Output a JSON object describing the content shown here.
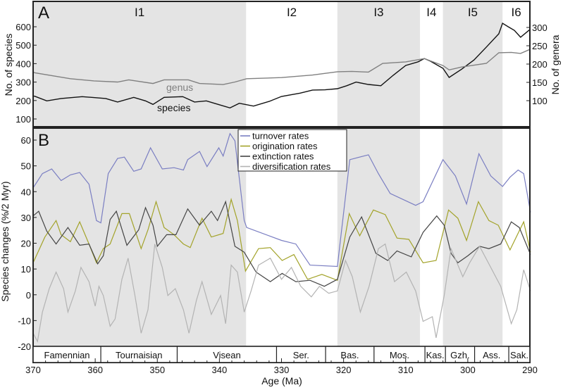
{
  "chart_data": [
    {
      "panel": "A",
      "type": "line",
      "ylabel_left": "No. of species",
      "ylabel_right": "No. of genera",
      "ylim_left": [
        50,
        700
      ],
      "yticks_left": [
        100,
        200,
        300,
        400,
        500,
        600
      ],
      "ylim_right": [
        0,
        370
      ],
      "yticks_right": [
        100,
        150,
        200,
        250,
        300
      ],
      "intervals": [
        {
          "label": "I1",
          "from": 370,
          "to": 335.7,
          "shaded": true
        },
        {
          "label": "I2",
          "from": 335.7,
          "to": 321,
          "shaded": false
        },
        {
          "label": "I3",
          "from": 321,
          "to": 307.7,
          "shaded": true
        },
        {
          "label": "I4",
          "from": 307.7,
          "to": 304,
          "shaded": false
        },
        {
          "label": "I5",
          "from": 304,
          "to": 294.4,
          "shaded": true
        },
        {
          "label": "I6",
          "from": 294.4,
          "to": 290,
          "shaded": false
        }
      ],
      "series": [
        {
          "name": "species",
          "axis": "left",
          "color": "#111111",
          "x": [
            370,
            369.7,
            367.8,
            365.5,
            362.1,
            358.3,
            356.4,
            353.8,
            351.9,
            350.7,
            348.9,
            345.9,
            344,
            342.1,
            340.2,
            338.3,
            336.8,
            334.5,
            332,
            330,
            327,
            325,
            323,
            321,
            319.5,
            318,
            316,
            314,
            312,
            310,
            308,
            307,
            306,
            304,
            303,
            301,
            299,
            297,
            295,
            294.4,
            293.5,
            292.5,
            291.5,
            290
          ],
          "y": [
            225,
            223,
            198,
            211,
            221,
            211,
            192,
            217,
            198,
            179,
            217,
            221,
            192,
            198,
            179,
            160,
            185,
            170,
            195,
            222,
            240,
            257,
            258,
            264,
            280,
            300,
            287,
            280,
            337,
            390,
            410,
            428,
            413,
            375,
            325,
            370,
            420,
            490,
            562,
            619,
            600,
            580,
            543,
            585
          ]
        },
        {
          "name": "genus",
          "axis": "right",
          "color": "#808080",
          "x": [
            370,
            369.7,
            364,
            360.2,
            356.4,
            354.6,
            350.7,
            348.9,
            345,
            343.2,
            339.4,
            337.5,
            335.6,
            330,
            325,
            321,
            318.7,
            316,
            313.7,
            310,
            307,
            304,
            303,
            301,
            297,
            295,
            293,
            291.5,
            290
          ],
          "y": [
            178,
            176,
            160,
            154,
            151,
            157,
            147,
            157,
            157,
            147,
            144,
            151,
            160,
            163,
            170,
            179,
            180,
            178,
            202,
            206,
            215,
            196,
            184,
            192,
            202,
            231,
            232,
            229,
            240
          ]
        }
      ]
    },
    {
      "panel": "B",
      "type": "line",
      "ylabel": "Species changes (%/2 Myr)",
      "xlabel": "Age (Ma)",
      "xlim": [
        370,
        290
      ],
      "xticks": [
        370,
        360,
        350,
        340,
        330,
        320,
        310,
        300,
        290
      ],
      "ylim": [
        -20,
        65
      ],
      "yticks": [
        -20,
        -10,
        0,
        10,
        20,
        30,
        40,
        50,
        60
      ],
      "legend": "top-center",
      "stages": [
        {
          "label": "Famennian",
          "from": 370,
          "to": 359.1
        },
        {
          "label": "Tournaisian",
          "from": 359.1,
          "to": 346.8
        },
        {
          "label": "Visean",
          "from": 346.8,
          "to": 330.8
        },
        {
          "label": "Ser.",
          "from": 330.8,
          "to": 322.9
        },
        {
          "label": "Bas.",
          "from": 322.9,
          "to": 315.1
        },
        {
          "label": "Mos.",
          "from": 315.1,
          "to": 306.9
        },
        {
          "label": "Kas.",
          "from": 306.9,
          "to": 303.6
        },
        {
          "label": "Gzh.",
          "from": 303.6,
          "to": 298.9
        },
        {
          "label": "Ass.",
          "from": 298.9,
          "to": 293.4
        },
        {
          "label": "Sak.",
          "from": 293.4,
          "to": 290
        }
      ],
      "series": [
        {
          "name": "turnover rates",
          "color": "#7a7ec2",
          "x": [
            370,
            368.5,
            367,
            365.5,
            364,
            362.5,
            361,
            359.8,
            359.1,
            357.9,
            356.4,
            355.3,
            353.8,
            352.6,
            351.1,
            349.2,
            347.3,
            345.8,
            345.1,
            343.2,
            342,
            340.1,
            339.4,
            338.3,
            337.5,
            336,
            335.6,
            330,
            327.7,
            325.4,
            321,
            319,
            316,
            314.4,
            312.5,
            308.4,
            307.2,
            304,
            302,
            300.2,
            298.2,
            296.3,
            294.4,
            293.2,
            291.9,
            291,
            289.9
          ],
          "y": [
            41.5,
            47,
            48.8,
            44.3,
            46.5,
            47.4,
            42.9,
            28.8,
            27.9,
            47,
            52.9,
            53.4,
            47.9,
            48.8,
            57,
            48.8,
            49.3,
            48.4,
            52.4,
            55.6,
            49.7,
            57,
            53.8,
            62.5,
            59.7,
            28.8,
            26.1,
            21.1,
            19.7,
            11.5,
            11,
            52.4,
            54.3,
            47,
            39.3,
            34.7,
            36.1,
            52.4,
            46.1,
            35.2,
            54.7,
            46.1,
            42,
            45.6,
            48.4,
            47,
            32
          ]
        },
        {
          "name": "origination rates",
          "color": "#a3a32a",
          "x": [
            370,
            368.1,
            366.3,
            365.5,
            364,
            362.5,
            361,
            359.8,
            358.7,
            357.6,
            355.7,
            354.5,
            352.6,
            351.5,
            350.2,
            348.9,
            347.3,
            345.8,
            344.7,
            342.8,
            341.3,
            339.4,
            338.1,
            337.1,
            335.8,
            333.7,
            331.8,
            329.9,
            328,
            325.8,
            323.5,
            321,
            319.1,
            317.4,
            315.2,
            313.3,
            311.4,
            309.5,
            307.2,
            305.1,
            303.1,
            301.6,
            300.2,
            298.3,
            296.6,
            295.1,
            293.2,
            291,
            289.9
          ],
          "y": [
            12.4,
            22.4,
            28.8,
            23.3,
            20.6,
            28.3,
            19.7,
            12.4,
            17.9,
            19.7,
            31.5,
            31.5,
            17.9,
            25.2,
            36.1,
            26.1,
            23.3,
            19.7,
            18.3,
            29.7,
            22.4,
            23.8,
            37,
            28.8,
            9.2,
            17.9,
            18.3,
            13.3,
            15.6,
            6,
            7.9,
            5.6,
            31.5,
            22.9,
            32.9,
            31.1,
            22,
            21.5,
            12.4,
            13.3,
            32.9,
            29.7,
            21.1,
            36.1,
            28.8,
            27,
            17.4,
            28.3,
            16.5
          ]
        },
        {
          "name": "extinction rates",
          "color": "#444444",
          "x": [
            370,
            369.1,
            367.8,
            366.3,
            364.4,
            362.5,
            361,
            359.6,
            358.7,
            357.6,
            356.6,
            354.9,
            353,
            351.9,
            350.7,
            350,
            348.5,
            347,
            345.1,
            343.2,
            341.3,
            340.3,
            339,
            337.5,
            336,
            334.1,
            331.8,
            329.9,
            327.7,
            325.4,
            323.1,
            321,
            319,
            317.1,
            314.8,
            312.9,
            311.4,
            309.1,
            307.2,
            305,
            303.8,
            302.7,
            301.6,
            300,
            298.1,
            296.6,
            294.7,
            293,
            291.7,
            289.9
          ],
          "y": [
            30.6,
            32.4,
            24.7,
            19.7,
            26.1,
            19.2,
            19.7,
            12,
            15.1,
            29.2,
            32.4,
            19.2,
            25.2,
            33.8,
            27,
            18.8,
            23.3,
            23.3,
            33.3,
            27,
            32.4,
            28.8,
            36.1,
            18.8,
            16.5,
            8.8,
            5.1,
            8.3,
            5.1,
            5.6,
            3.3,
            6,
            22.4,
            30.2,
            16.1,
            13.3,
            17,
            14.7,
            24.2,
            30.6,
            27,
            16.1,
            12.4,
            15.1,
            18.8,
            17.9,
            19.7,
            28.3,
            26.1,
            15.6
          ]
        },
        {
          "name": "diversification rates",
          "color": "#b3b3b3",
          "x": [
            370,
            369.3,
            368.5,
            367.4,
            366.3,
            365.1,
            364.4,
            363.2,
            362.3,
            361,
            360,
            359.4,
            358.7,
            357.6,
            356.8,
            355.7,
            354.7,
            353.6,
            352.6,
            351.5,
            350.4,
            349.2,
            348.3,
            347.1,
            345.8,
            344.9,
            343.7,
            342.8,
            341.3,
            339.8,
            339,
            338.1,
            337.1,
            336,
            334.9,
            333.7,
            331.8,
            330,
            328.4,
            326.9,
            325.2,
            323.9,
            322.4,
            321,
            319.7,
            318.6,
            317.3,
            315.9,
            314.4,
            313.3,
            311.8,
            309.9,
            308.4,
            307.2,
            305.7,
            305.1,
            303.8,
            302.7,
            300.8,
            299.7,
            298.1,
            296.3,
            294.7,
            293,
            292.1,
            291,
            289.9
          ],
          "y": [
            -14.9,
            -18.1,
            -6.7,
            2.4,
            8.8,
            2.4,
            -6.7,
            1.5,
            10.6,
            5.1,
            -4.4,
            3.3,
            -0.3,
            -12.2,
            -9.4,
            6,
            14.2,
            -0.3,
            -14.9,
            -5.8,
            19.7,
            10.6,
            -0.3,
            2.4,
            -5.8,
            -14.9,
            -2.1,
            5.1,
            -7.6,
            -0.3,
            -11.2,
            11.5,
            8.8,
            -6.7,
            1.5,
            11.5,
            14.2,
            6,
            10.6,
            3.3,
            -0.8,
            3.3,
            0.6,
            1.5,
            13.3,
            7,
            -6.7,
            3.3,
            17.9,
            19.7,
            5.1,
            8.8,
            1.5,
            -10.3,
            -8.5,
            -16.7,
            -0.3,
            17.9,
            7,
            12.4,
            18.8,
            10.6,
            3.3,
            -11.2,
            -5.8,
            9.7,
            1.5
          ]
        }
      ]
    }
  ],
  "shading_color": "#e4e4e4"
}
